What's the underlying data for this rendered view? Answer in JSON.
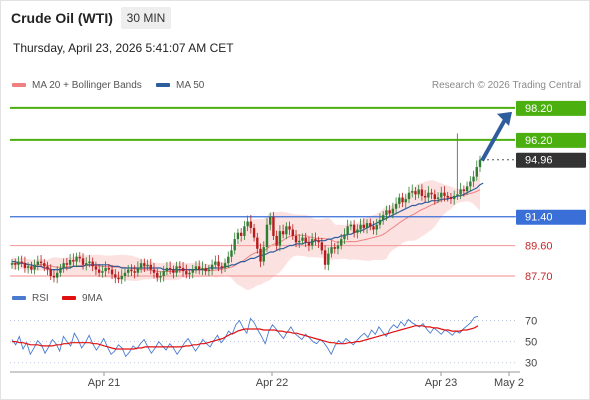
{
  "header": {
    "title": "Crude Oil (WTI)",
    "interval": "30 MIN",
    "datetime": "Thursday, April 23, 2026 5:41:07 AM CET"
  },
  "legend": {
    "bollinger": {
      "label": "MA 20 + Bollinger Bands",
      "color": "#f08080"
    },
    "ma50": {
      "label": "MA 50",
      "color": "#2e5d9e"
    },
    "rsi": {
      "label": "RSI",
      "color": "#4a7bd0"
    },
    "rsi_ma": {
      "label": "9MA",
      "color": "#e01010"
    }
  },
  "credit": "Research © 2026 Trading Central",
  "colors": {
    "up": "#2e7d32",
    "down": "#b71c1c",
    "target": "#4caf10",
    "pivot": "#3a6fd8",
    "support": "#f4a0a0",
    "support_text": "#c62828",
    "last": "#333333",
    "arrow": "#2e5d9e"
  },
  "chart_data": [
    {
      "type": "candlestick",
      "title": "Crude Oil (WTI)",
      "xlabel": "",
      "ylabel": "",
      "x_ticks": [
        "Apr 21",
        "Apr 22",
        "Apr 23",
        "May 2"
      ],
      "ylim": [
        86.2,
        99.0
      ],
      "candles_note": "approximate OHLC sequence read from the 30-minute chart",
      "closes": [
        88.5,
        88.4,
        88.6,
        88.5,
        88.2,
        88.3,
        88.1,
        88.4,
        88.6,
        88.5,
        88.3,
        88.1,
        87.7,
        87.6,
        87.9,
        88.2,
        88.5,
        88.4,
        88.7,
        88.6,
        88.9,
        88.8,
        88.4,
        88.5,
        88.6,
        88.3,
        88.1,
        87.9,
        88.0,
        88.2,
        88.1,
        87.8,
        87.6,
        87.5,
        87.7,
        87.9,
        88.1,
        88.0,
        87.9,
        88.2,
        88.5,
        88.3,
        88.4,
        88.1,
        87.9,
        87.6,
        87.7,
        88.0,
        88.2,
        88.1,
        87.9,
        88.3,
        88.2,
        88.0,
        87.8,
        87.9,
        88.1,
        88.3,
        88.1,
        88.2,
        88.0,
        88.1,
        88.4,
        88.6,
        88.3,
        88.2,
        88.5,
        88.9,
        89.3,
        90.0,
        90.4,
        90.2,
        90.8,
        91.1,
        90.7,
        90.1,
        89.4,
        88.6,
        89.5,
        90.9,
        91.4,
        90.2,
        89.6,
        90.5,
        90.3,
        90.8,
        90.6,
        90.2,
        89.8,
        89.9,
        90.1,
        89.8,
        89.6,
        90.0,
        89.9,
        89.8,
        89.3,
        88.4,
        89.1,
        89.5,
        89.4,
        89.6,
        90.0,
        90.3,
        90.8,
        90.9,
        90.4,
        90.6,
        90.9,
        90.7,
        91.0,
        90.8,
        90.6,
        90.9,
        91.2,
        91.5,
        91.8,
        91.6,
        91.9,
        92.2,
        92.6,
        92.3,
        92.5,
        92.9,
        93.0,
        92.8,
        93.1,
        92.7,
        92.6,
        92.9,
        92.8,
        92.5,
        92.6,
        92.9,
        92.7,
        92.6,
        92.5,
        92.7,
        92.8,
        93.1,
        93.0,
        93.3,
        93.6,
        93.9,
        94.5,
        94.96
      ],
      "ma50": [
        88.6,
        88.6,
        88.5,
        88.5,
        88.5,
        88.4,
        88.4,
        88.3,
        88.3,
        88.3,
        88.2,
        88.2,
        88.1,
        88.1,
        88.1,
        88.1,
        88.2,
        88.2,
        88.2,
        88.3,
        88.3,
        88.3,
        88.3,
        88.4,
        88.4,
        88.4,
        88.4,
        88.4,
        88.4,
        88.4,
        88.4,
        88.3,
        88.3,
        88.3,
        88.2,
        88.2,
        88.2,
        88.2,
        88.2,
        88.2,
        88.2,
        88.2,
        88.2,
        88.2,
        88.2,
        88.2,
        88.2,
        88.1,
        88.1,
        88.1,
        88.1,
        88.1,
        88.1,
        88.1,
        88.1,
        88.1,
        88.1,
        88.1,
        88.1,
        88.1,
        88.1,
        88.2,
        88.2,
        88.2,
        88.2,
        88.2,
        88.3,
        88.3,
        88.4,
        88.4,
        88.5,
        88.6,
        88.6,
        88.7,
        88.8,
        88.8,
        88.9,
        89.0,
        89.0,
        89.1,
        89.2,
        89.2,
        89.3,
        89.4,
        89.4,
        89.5,
        89.6,
        89.6,
        89.7,
        89.7,
        89.7,
        89.8,
        89.8,
        89.8,
        89.9,
        89.9,
        89.9,
        89.9,
        90.0,
        90.0,
        90.1,
        90.1,
        90.2,
        90.2,
        90.3,
        90.3,
        90.4,
        90.5,
        90.5,
        90.6,
        90.7,
        90.8,
        90.9,
        91.0,
        91.1,
        91.2,
        91.3,
        91.4,
        91.5,
        91.6,
        91.7,
        91.8,
        91.9,
        92.0,
        92.1,
        92.1,
        92.2,
        92.2,
        92.3,
        92.3,
        92.4,
        92.4,
        92.4,
        92.5,
        92.5,
        92.5,
        92.6,
        92.6,
        92.7,
        92.7,
        92.8,
        92.9,
        93.0,
        93.1,
        93.2,
        93.4,
        93.5
      ],
      "levels": [
        {
          "value": 98.2,
          "label": "98.20",
          "kind": "target"
        },
        {
          "value": 96.2,
          "label": "96.20",
          "kind": "target"
        },
        {
          "value": 94.96,
          "label": "94.96",
          "kind": "last"
        },
        {
          "value": 91.4,
          "label": "91.40",
          "kind": "pivot"
        },
        {
          "value": 89.6,
          "label": "89.60",
          "kind": "support"
        },
        {
          "value": 87.7,
          "label": "87.70",
          "kind": "support"
        }
      ],
      "spike_high": 96.6,
      "arrow": {
        "from": 94.9,
        "to": 98.2
      }
    },
    {
      "type": "line",
      "title": "",
      "ylim": [
        25,
        80
      ],
      "y_ticks": [
        70,
        50,
        30
      ],
      "series": [
        {
          "name": "RSI",
          "values": [
            52,
            47,
            55,
            43,
            49,
            38,
            44,
            51,
            47,
            39,
            45,
            52,
            48,
            41,
            55,
            50,
            46,
            58,
            52,
            44,
            49,
            56,
            48,
            42,
            47,
            53,
            45,
            38,
            41,
            47,
            44,
            36,
            40,
            46,
            43,
            48,
            52,
            45,
            39,
            44,
            50,
            46,
            42,
            48,
            44,
            38,
            43,
            49,
            53,
            47,
            41,
            46,
            52,
            48,
            45,
            51,
            56,
            49,
            53,
            60,
            57,
            66,
            70,
            63,
            58,
            72,
            68,
            61,
            55,
            48,
            60,
            66,
            62,
            57,
            53,
            59,
            64,
            58,
            55,
            52,
            57,
            54,
            50,
            48,
            52,
            49,
            44,
            38,
            46,
            51,
            48,
            53,
            50,
            47,
            51,
            55,
            58,
            54,
            61,
            57,
            64,
            59,
            55,
            62,
            66,
            63,
            69,
            65,
            71,
            68,
            66,
            64,
            67,
            62,
            58,
            63,
            60,
            57,
            61,
            59,
            56,
            60,
            58,
            62,
            65,
            68,
            73,
            74
          ]
        },
        {
          "name": "9MA",
          "values": [
            50,
            50,
            49,
            49,
            48,
            47,
            47,
            47,
            46,
            46,
            46,
            46,
            47,
            47,
            48,
            48,
            49,
            49,
            49,
            49,
            49,
            49,
            48,
            48,
            47,
            46,
            45,
            44,
            43,
            43,
            43,
            43,
            43,
            43,
            44,
            44,
            45,
            45,
            45,
            45,
            45,
            45,
            45,
            45,
            45,
            45,
            45,
            46,
            46,
            47,
            47,
            48,
            48,
            49,
            50,
            51,
            52,
            53,
            55,
            57,
            58,
            60,
            61,
            62,
            62,
            62,
            62,
            62,
            61,
            61,
            61,
            61,
            60,
            60,
            59,
            59,
            58,
            58,
            57,
            56,
            55,
            54,
            53,
            52,
            51,
            50,
            49,
            49,
            48,
            48,
            48,
            49,
            49,
            50,
            50,
            51,
            52,
            53,
            54,
            55,
            56,
            57,
            58,
            59,
            60,
            61,
            62,
            63,
            64,
            65,
            65,
            65,
            64,
            64,
            63,
            63,
            62,
            61,
            61,
            60,
            60,
            60,
            61,
            61,
            62,
            63,
            65
          ]
        }
      ]
    }
  ]
}
